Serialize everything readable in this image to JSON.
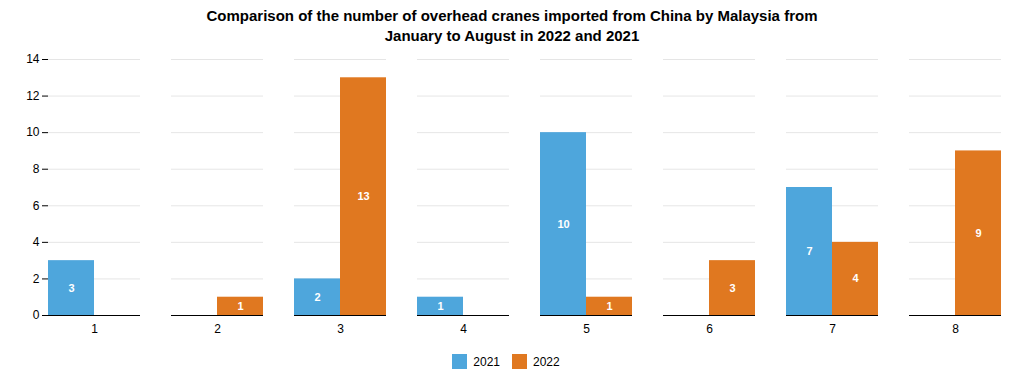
{
  "chart_data": {
    "type": "bar",
    "title": "Comparison of the number of overhead cranes imported from China by Malaysia from\nJanuary to August in 2022 and 2021",
    "categories": [
      "1",
      "2",
      "3",
      "4",
      "5",
      "6",
      "7",
      "8"
    ],
    "series": [
      {
        "name": "2021",
        "color": "#4EA6DC",
        "values": [
          3,
          0,
          2,
          1,
          10,
          0,
          7,
          0
        ]
      },
      {
        "name": "2022",
        "color": "#E07820",
        "values": [
          0,
          1,
          13,
          0,
          1,
          3,
          4,
          9
        ]
      }
    ],
    "ylim": [
      0,
      14
    ],
    "yticks": [
      0,
      2,
      4,
      6,
      8,
      10,
      12,
      14
    ],
    "grid": true,
    "data_labels": true
  }
}
